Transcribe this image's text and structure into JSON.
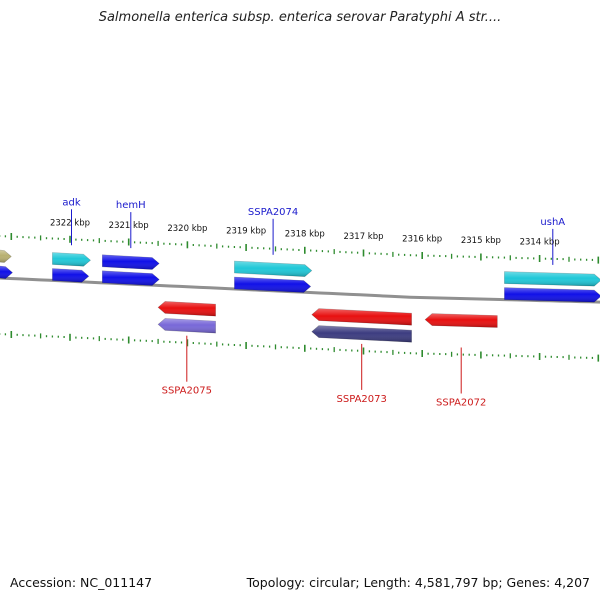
{
  "title": "Salmonella enterica subsp. enterica serovar Paratyphi A str....",
  "footer": {
    "accession": "Accession: NC_011147",
    "topology": "Topology: circular; Length: 4,581,797 bp; Genes: 4,207"
  },
  "colors": {
    "backbone": "#909090",
    "tick": "#2e8b2e",
    "plus_label": "#1a1acc",
    "minus_label": "#cc1a1a",
    "blue": "#1010e8",
    "cyan": "#20c8d8",
    "red": "#e81010",
    "lavender": "#7868d8",
    "navy": "#3c3c80",
    "olive": "#b8b070"
  },
  "scale_labels": [
    {
      "text": "2322 kbp",
      "kbp": 2322
    },
    {
      "text": "2321 kbp",
      "kbp": 2321
    },
    {
      "text": "2320 kbp",
      "kbp": 2320
    },
    {
      "text": "2319 kbp",
      "kbp": 2319
    },
    {
      "text": "2318 kbp",
      "kbp": 2318
    },
    {
      "text": "2317 kbp",
      "kbp": 2317
    },
    {
      "text": "2316 kbp",
      "kbp": 2316
    },
    {
      "text": "2315 kbp",
      "kbp": 2315
    },
    {
      "text": "2314 kbp",
      "kbp": 2314
    }
  ],
  "genes": {
    "plus_outer": [
      {
        "name": "",
        "start_kbp": 2323.22,
        "end_kbp": 2323.0,
        "color": "olive"
      },
      {
        "name": "adk",
        "start_kbp": 2322.3,
        "end_kbp": 2321.65,
        "color": "cyan"
      },
      {
        "name": "hemH",
        "start_kbp": 2321.45,
        "end_kbp": 2320.48,
        "color": "blue"
      },
      {
        "name": "SSPA2074",
        "start_kbp": 2319.2,
        "end_kbp": 2317.88,
        "color": "cyan"
      },
      {
        "name": "ushA",
        "start_kbp": 2314.6,
        "end_kbp": 2312.95,
        "color": "cyan"
      }
    ],
    "plus_inner": [
      {
        "name": "",
        "start_kbp": 2323.22,
        "end_kbp": 2322.98,
        "color": "blue"
      },
      {
        "name": "",
        "start_kbp": 2322.3,
        "end_kbp": 2321.68,
        "color": "blue"
      },
      {
        "name": "",
        "start_kbp": 2321.45,
        "end_kbp": 2320.48,
        "color": "blue"
      },
      {
        "name": "",
        "start_kbp": 2319.2,
        "end_kbp": 2317.9,
        "color": "blue"
      },
      {
        "name": "",
        "start_kbp": 2314.6,
        "end_kbp": 2312.95,
        "color": "blue"
      }
    ],
    "minus_outer": [
      {
        "name": "SSPA2075",
        "start_kbp": 2320.5,
        "end_kbp": 2319.52,
        "color": "red"
      },
      {
        "name": "SSPA2073",
        "start_kbp": 2317.88,
        "end_kbp": 2316.18,
        "color": "red"
      },
      {
        "name": "SSPA2072",
        "start_kbp": 2315.95,
        "end_kbp": 2314.72,
        "color": "red"
      }
    ],
    "minus_inner": [
      {
        "name": "",
        "start_kbp": 2320.5,
        "end_kbp": 2319.52,
        "color": "lavender"
      },
      {
        "name": "",
        "start_kbp": 2317.88,
        "end_kbp": 2316.18,
        "color": "navy"
      }
    ]
  }
}
